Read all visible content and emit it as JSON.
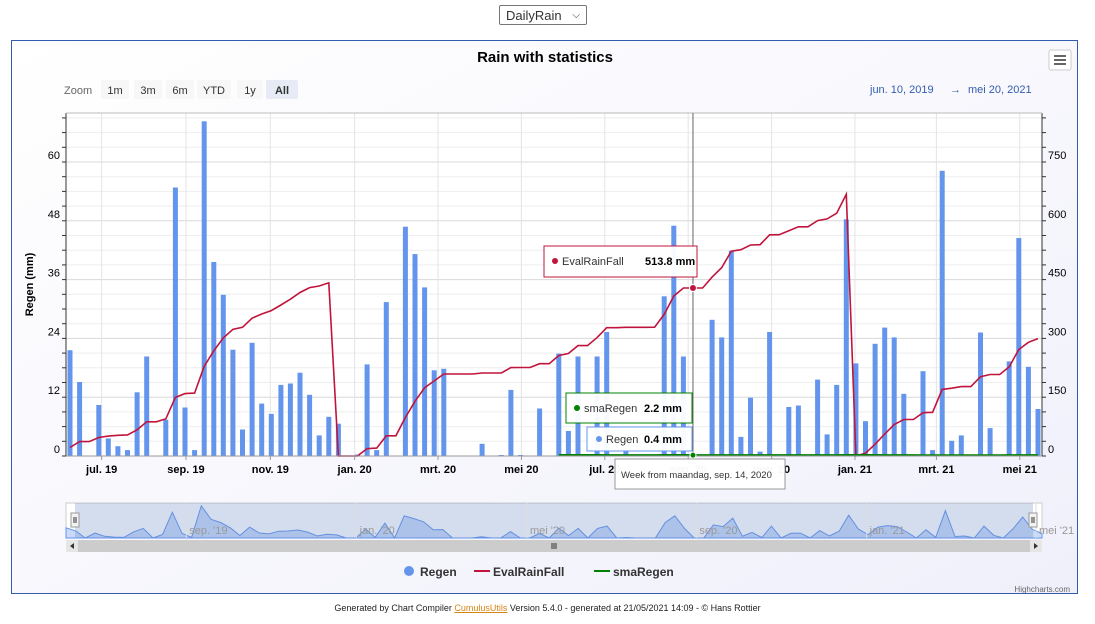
{
  "selector": {
    "value": "DailyRain"
  },
  "chart": {
    "title": "Rain with statistics",
    "zoom_label": "Zoom",
    "zoom_buttons": [
      "1m",
      "3m",
      "6m",
      "YTD",
      "1y",
      "All"
    ],
    "zoom_active": "All",
    "range_from": "jun. 10, 2019",
    "range_arrow": "→",
    "range_to": "mei 20, 2021",
    "credits": "Highcharts.com",
    "tooltip_eval": {
      "series": "EvalRainFall",
      "value": "513.8 mm",
      "color": "#c0143c"
    },
    "tooltip_sma": {
      "series": "smaRegen",
      "value": "2.2 mm",
      "color": "#008000"
    },
    "tooltip_regen": {
      "series": "Regen",
      "value": "0.4 mm",
      "color": "#6495ed"
    },
    "tooltip_header": "Week from maandag, sep. 14, 2020",
    "navigator_labels": [
      "sep. '19",
      "jan. '20",
      "mei '20",
      "sep. '20",
      "jan. '21",
      "mei '21"
    ]
  },
  "chart_data": {
    "type": "bar",
    "title": "Rain with statistics",
    "xlabel": "",
    "ylabel": "Regen (mm)",
    "ylim": [
      0,
      70
    ],
    "y2lim": [
      0,
      875
    ],
    "yticks": [
      0,
      12,
      24,
      36,
      48,
      60
    ],
    "y2ticks": [
      0,
      150,
      300,
      450,
      600,
      750
    ],
    "xticks": [
      {
        "label": "jul. 19",
        "week": 3.3
      },
      {
        "label": "sep. 19",
        "week": 12.1
      },
      {
        "label": "nov. 19",
        "week": 20.9
      },
      {
        "label": "jan. 20",
        "week": 29.7
      },
      {
        "label": "mrt. 20",
        "week": 38.4
      },
      {
        "label": "mei 20",
        "week": 47.1
      },
      {
        "label": "jul. 20",
        "week": 55.8
      },
      {
        "label": "sep. 20",
        "week": 64.5
      },
      {
        "label": "nov. 20",
        "week": 73.2
      },
      {
        "label": "jan. 21",
        "week": 81.9
      },
      {
        "label": "mrt. 21",
        "week": 90.4
      },
      {
        "label": "mei 21",
        "week": 99.1
      }
    ],
    "legend": [
      "Regen",
      "EvalRainFall",
      "smaRegen"
    ],
    "legend_position": "bottom-center",
    "series": [
      {
        "name": "Regen",
        "color": "#6495ed",
        "axis": "left",
        "values": [
          21.6,
          15.1,
          0,
          10.4,
          3.6,
          2,
          1.2,
          13,
          20.3,
          0,
          7.4,
          54.8,
          9.9,
          1.2,
          68.3,
          39.6,
          32.9,
          21.7,
          5.4,
          23.1,
          10.7,
          8.6,
          14.5,
          14.8,
          17,
          12.5,
          4.2,
          8,
          6.6,
          0,
          0.3,
          18.7,
          1.2,
          31.4,
          0,
          46.8,
          41.2,
          34.4,
          17.5,
          17.8,
          0,
          0,
          0,
          2.5,
          0,
          0.2,
          13.5,
          0.2,
          0,
          9.7,
          0,
          20.9,
          5.1,
          20.3,
          0,
          20.3,
          25.3,
          0,
          1,
          0,
          0,
          0.3,
          32.6,
          47,
          20.3,
          0,
          0,
          27.8,
          24.2,
          41.9,
          3.9,
          11.9,
          0.9,
          25.3,
          0.1,
          10,
          10.3,
          0,
          15.6,
          4.4,
          14.5,
          48.3,
          18.9,
          7.1,
          22.9,
          26.2,
          24.2,
          12.7,
          0,
          17.3,
          1.2,
          58.2,
          3.1,
          4.2,
          0,
          25.2,
          5.7,
          0,
          19.3,
          44.5,
          18.2,
          9.6
        ]
      },
      {
        "name": "EvalRainFall",
        "color": "#c0143c",
        "axis": "right",
        "values": [
          21.6,
          36.7,
          36.7,
          47.1,
          50.7,
          52.7,
          53.9,
          66.9,
          87.2,
          87.2,
          94.6,
          149.4,
          159.3,
          160.5,
          228.8,
          268.4,
          301.3,
          323,
          328.4,
          351.5,
          362.2,
          370.8,
          385.3,
          400.1,
          417.1,
          429.6,
          433.8,
          441.8,
          0,
          0,
          0.3,
          19,
          20.2,
          51.6,
          51.6,
          98.4,
          139.6,
          174,
          191.5,
          209.3,
          209.3,
          209.3,
          209.3,
          211.8,
          211.8,
          212,
          225.5,
          225.7,
          225.7,
          235.4,
          235.4,
          256.3,
          261.4,
          281.7,
          281.7,
          302,
          327.3,
          327.3,
          328.3,
          328.3,
          328.3,
          328.6,
          361.2,
          408.2,
          428.5,
          428.5,
          428.5,
          456.3,
          480.5,
          522.4,
          526.3,
          538.2,
          539.1,
          564.4,
          564.5,
          574.5,
          584.8,
          584.8,
          600.4,
          604.8,
          619.3,
          667.6,
          0,
          7.1,
          30,
          56.2,
          80.4,
          93.1,
          93.1,
          110.4,
          111.6,
          169.8,
          172.9,
          177.1,
          177.1,
          202.3,
          208,
          208,
          227.3,
          271.8,
          290,
          299.6
        ]
      },
      {
        "name": "smaRegen",
        "color": "#008000",
        "axis": "right",
        "values": [
          null,
          null,
          null,
          null,
          null,
          null,
          null,
          null,
          null,
          null,
          null,
          null,
          null,
          null,
          null,
          null,
          null,
          null,
          null,
          null,
          null,
          null,
          null,
          null,
          null,
          null,
          null,
          null,
          null,
          null,
          null,
          null,
          null,
          null,
          null,
          null,
          null,
          null,
          null,
          null,
          null,
          null,
          null,
          null,
          null,
          null,
          null,
          null,
          null,
          null,
          null,
          2.2,
          2.2,
          2.2,
          2.2,
          2.2,
          2.1,
          2.1,
          2.1,
          2.1,
          2.1,
          2.1,
          2.2,
          2.2,
          2.2,
          2.1,
          2.1,
          2.1,
          2.1,
          2.1,
          2.1,
          2.1,
          2.1,
          2.1,
          2.1,
          2.1,
          2.1,
          2.1,
          2.1,
          2.1,
          2.1,
          2.2,
          2.2,
          2.2,
          2.2,
          2.1,
          2.1,
          2.1,
          2.1,
          1.9,
          1.9,
          1.9,
          1.9,
          1.9,
          1.9,
          1.9,
          1.9,
          1.9,
          2,
          2,
          2,
          2
        ]
      }
    ]
  }
}
